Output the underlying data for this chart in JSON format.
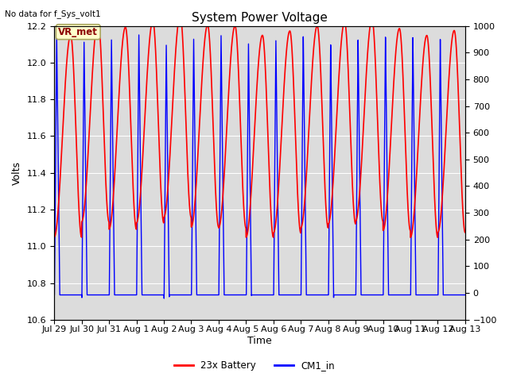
{
  "title": "System Power Voltage",
  "xlabel": "Time",
  "ylabel": "Volts",
  "ylim_left": [
    10.6,
    12.2
  ],
  "ylim_right": [
    -100,
    1000
  ],
  "yticks_left": [
    10.6,
    10.8,
    11.0,
    11.2,
    11.4,
    11.6,
    11.8,
    12.0,
    12.2
  ],
  "yticks_right": [
    -100,
    0,
    100,
    200,
    300,
    400,
    500,
    600,
    700,
    800,
    900,
    1000
  ],
  "xtick_labels": [
    "Jul 29",
    "Jul 30",
    "Jul 31",
    "Aug 1",
    "Aug 2",
    "Aug 3",
    "Aug 4",
    "Aug 5",
    "Aug 6",
    "Aug 7",
    "Aug 8",
    "Aug 9",
    "Aug 10",
    "Aug 11",
    "Aug 12",
    "Aug 13"
  ],
  "no_data_text": "No data for f_Sys_volt1",
  "vr_met_label": "VR_met",
  "legend_entries": [
    "23x Battery",
    "CM1_in"
  ],
  "line_colors": [
    "red",
    "blue"
  ],
  "background_color": "#dcdcdc",
  "title_fontsize": 11,
  "axis_label_fontsize": 9,
  "tick_fontsize": 8,
  "num_days": 15,
  "red_min": 11.08,
  "red_max": 12.18,
  "blue_min": 10.735,
  "blue_max": 12.13,
  "points_per_day": 500
}
